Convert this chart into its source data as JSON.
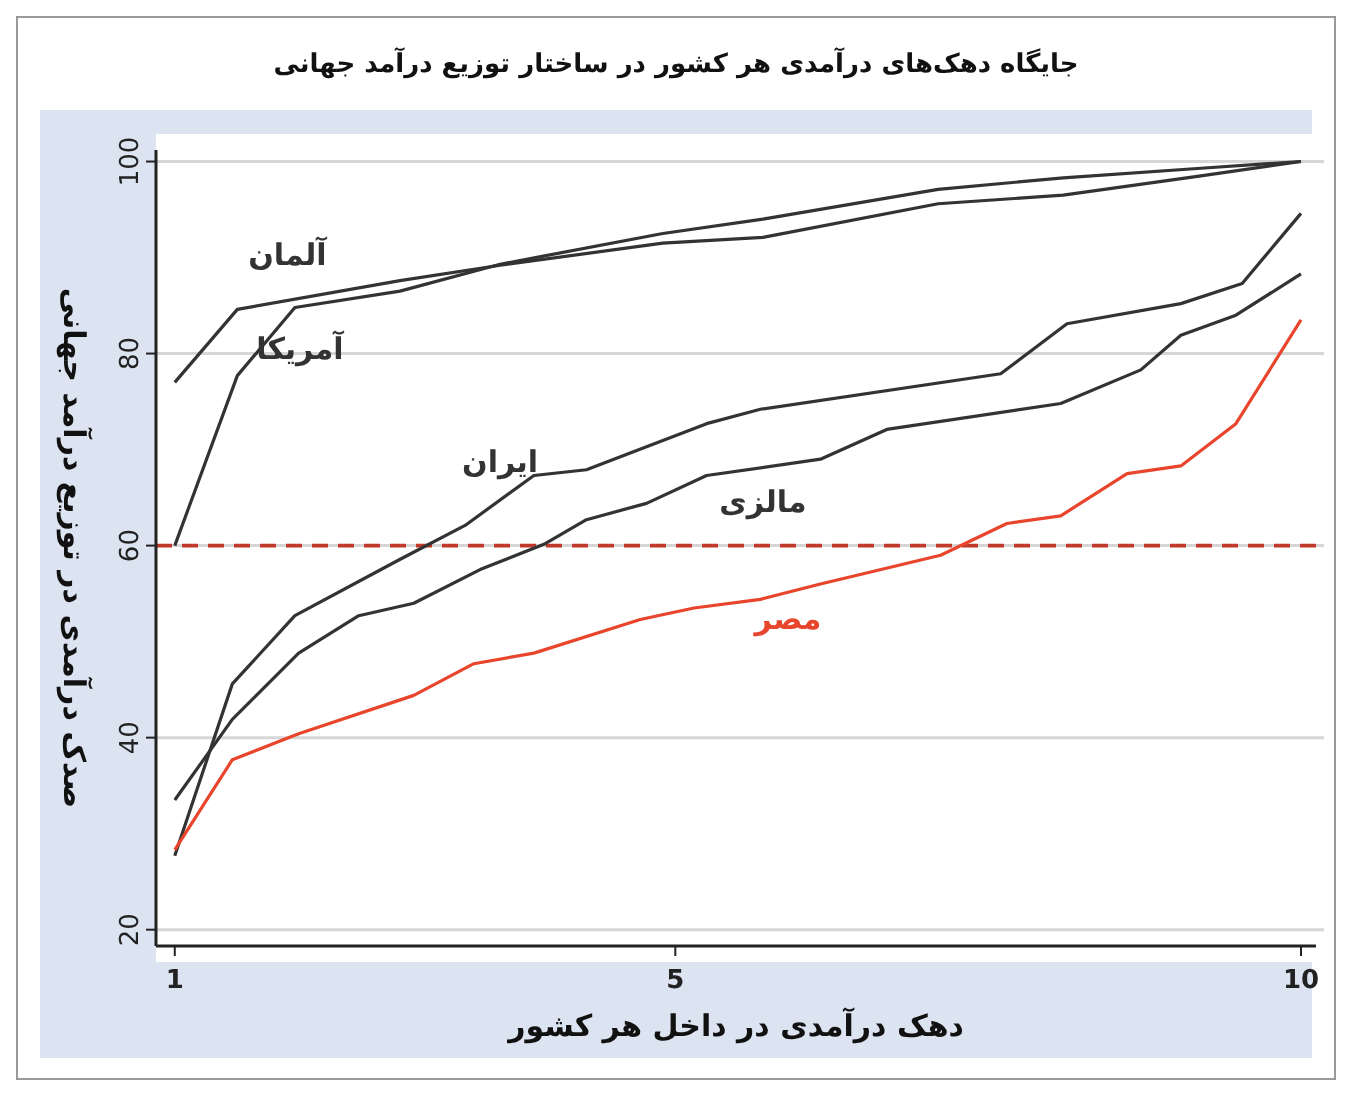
{
  "chart_data": {
    "type": "line",
    "title": "جایگاه دهک‌های درآمدی هر کشور در ساختار توزیع درآمد جهانی",
    "xlabel": "دهک درآمدی در داخل هر کشور",
    "ylabel": "صدک درآمدی در توزیع درآمد جهانی",
    "xlim": [
      0.85,
      10.12
    ],
    "xticks": [
      1,
      5,
      10
    ],
    "ylim": [
      18.3,
      101.2
    ],
    "yticks": [
      20,
      40,
      60,
      80,
      100
    ],
    "grid": "y",
    "marker": "none",
    "line_style": "solid",
    "ref_lines": [
      {
        "axis": "y",
        "value": 60,
        "color": "#c0392b",
        "line_style": "dashed"
      }
    ],
    "series": [
      {
        "name": "آلمان",
        "color": "#333333",
        "x": [
          1,
          1.5,
          2.8,
          3.6,
          4.9,
          5.7,
          7.1,
          8.1,
          9.2,
          10
        ],
        "values": [
          77,
          84.6,
          87.6,
          89.2,
          91.5,
          92.1,
          95.6,
          96.5,
          98.5,
          100
        ]
      },
      {
        "name": "آمریکا",
        "color": "#333333",
        "x": [
          1,
          1.5,
          1.96,
          2.8,
          3.6,
          4.9,
          5.7,
          7.1,
          8.1,
          9.2,
          10
        ],
        "values": [
          60,
          77.7,
          84.8,
          86.5,
          89.3,
          92.5,
          94,
          97.1,
          98.3,
          99.3,
          100
        ]
      },
      {
        "name": "ایران",
        "color": "#333333",
        "x": [
          1,
          1.46,
          1.96,
          2.79,
          3.32,
          3.87,
          4.29,
          5.25,
          5.68,
          7.6,
          8.13,
          9.04,
          9.53,
          10
        ],
        "values": [
          27.7,
          45.6,
          52.7,
          58.5,
          62.1,
          67.3,
          67.9,
          72.7,
          74.2,
          77.9,
          83.1,
          85.2,
          87.3,
          94.6
        ]
      },
      {
        "name": "مالزی",
        "color": "#333333",
        "x": [
          1,
          1.46,
          1.99,
          2.47,
          2.91,
          3.44,
          3.96,
          4.29,
          4.77,
          5.25,
          6.16,
          6.69,
          8.08,
          8.72,
          9.04,
          9.48,
          10
        ],
        "values": [
          33.5,
          41.9,
          48.8,
          52.7,
          54,
          57.5,
          60.2,
          62.7,
          64.4,
          67.3,
          69,
          72.1,
          74.8,
          78.3,
          81.9,
          84,
          88.3
        ]
      },
      {
        "name": "مصر",
        "color": "#e8452c",
        "x": [
          1,
          1.46,
          1.99,
          2.91,
          3.39,
          3.87,
          4.72,
          5.15,
          5.68,
          6.16,
          7.12,
          7.65,
          8.08,
          8.61,
          9.04,
          9.48,
          10
        ],
        "values": [
          28.3,
          37.7,
          40.4,
          44.4,
          47.7,
          48.8,
          52.3,
          53.5,
          54.4,
          56,
          59,
          62.3,
          63.1,
          67.5,
          68.3,
          72.7,
          83.5
        ]
      }
    ]
  }
}
